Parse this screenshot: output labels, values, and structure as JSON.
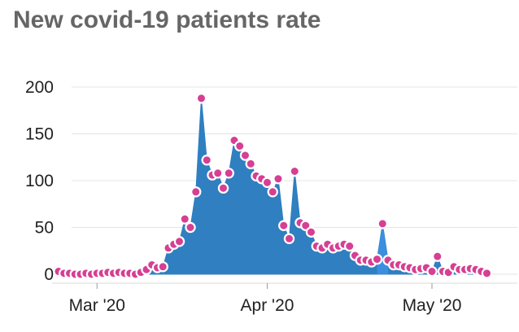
{
  "chart_data": {
    "type": "area",
    "title": "New covid-19 patients rate",
    "xlabel": "",
    "ylabel": "",
    "ylim": [
      0,
      200
    ],
    "yticks": [
      0,
      50,
      100,
      150,
      200
    ],
    "xticks": [
      {
        "date": "2020-03-01",
        "label": "Mar '20"
      },
      {
        "date": "2020-04-01",
        "label": "Apr '20"
      },
      {
        "date": "2020-05-01",
        "label": "May '20"
      }
    ],
    "grid": "horizontal",
    "legend": "none",
    "series_color": "#2f7fc1",
    "highlight_color": "#3a8fe0",
    "marker_color": "#d63f93",
    "marker_outline": "#ffffff",
    "gridline_color": "#e4e4e4",
    "x": [
      "2020-02-23",
      "2020-02-24",
      "2020-02-25",
      "2020-02-26",
      "2020-02-27",
      "2020-02-28",
      "2020-02-29",
      "2020-03-01",
      "2020-03-02",
      "2020-03-03",
      "2020-03-04",
      "2020-03-05",
      "2020-03-06",
      "2020-03-07",
      "2020-03-08",
      "2020-03-09",
      "2020-03-10",
      "2020-03-11",
      "2020-03-12",
      "2020-03-13",
      "2020-03-14",
      "2020-03-15",
      "2020-03-16",
      "2020-03-17",
      "2020-03-18",
      "2020-03-19",
      "2020-03-20",
      "2020-03-21",
      "2020-03-22",
      "2020-03-23",
      "2020-03-24",
      "2020-03-25",
      "2020-03-26",
      "2020-03-27",
      "2020-03-28",
      "2020-03-29",
      "2020-03-30",
      "2020-03-31",
      "2020-04-01",
      "2020-04-02",
      "2020-04-03",
      "2020-04-04",
      "2020-04-05",
      "2020-04-06",
      "2020-04-07",
      "2020-04-08",
      "2020-04-09",
      "2020-04-10",
      "2020-04-11",
      "2020-04-12",
      "2020-04-13",
      "2020-04-14",
      "2020-04-15",
      "2020-04-16",
      "2020-04-17",
      "2020-04-18",
      "2020-04-19",
      "2020-04-20",
      "2020-04-21",
      "2020-04-22",
      "2020-04-23",
      "2020-04-24",
      "2020-04-25",
      "2020-04-26",
      "2020-04-27",
      "2020-04-28",
      "2020-04-29",
      "2020-04-30",
      "2020-05-01",
      "2020-05-02",
      "2020-05-03",
      "2020-05-04",
      "2020-05-05",
      "2020-05-06",
      "2020-05-07",
      "2020-05-08",
      "2020-05-09",
      "2020-05-10",
      "2020-05-11"
    ],
    "values": [
      3,
      1,
      1,
      0,
      0,
      1,
      0,
      1,
      1,
      2,
      1,
      2,
      1,
      1,
      0,
      2,
      5,
      10,
      7,
      8,
      28,
      32,
      35,
      59,
      50,
      88,
      188,
      122,
      106,
      108,
      92,
      108,
      143,
      137,
      127,
      118,
      105,
      102,
      98,
      88,
      102,
      52,
      38,
      110,
      55,
      52,
      45,
      30,
      28,
      32,
      28,
      30,
      32,
      30,
      20,
      15,
      15,
      13,
      16,
      54,
      15,
      10,
      10,
      8,
      7,
      5,
      6,
      7,
      3,
      19,
      3,
      2,
      8,
      5,
      5,
      6,
      5,
      3,
      1
    ]
  }
}
